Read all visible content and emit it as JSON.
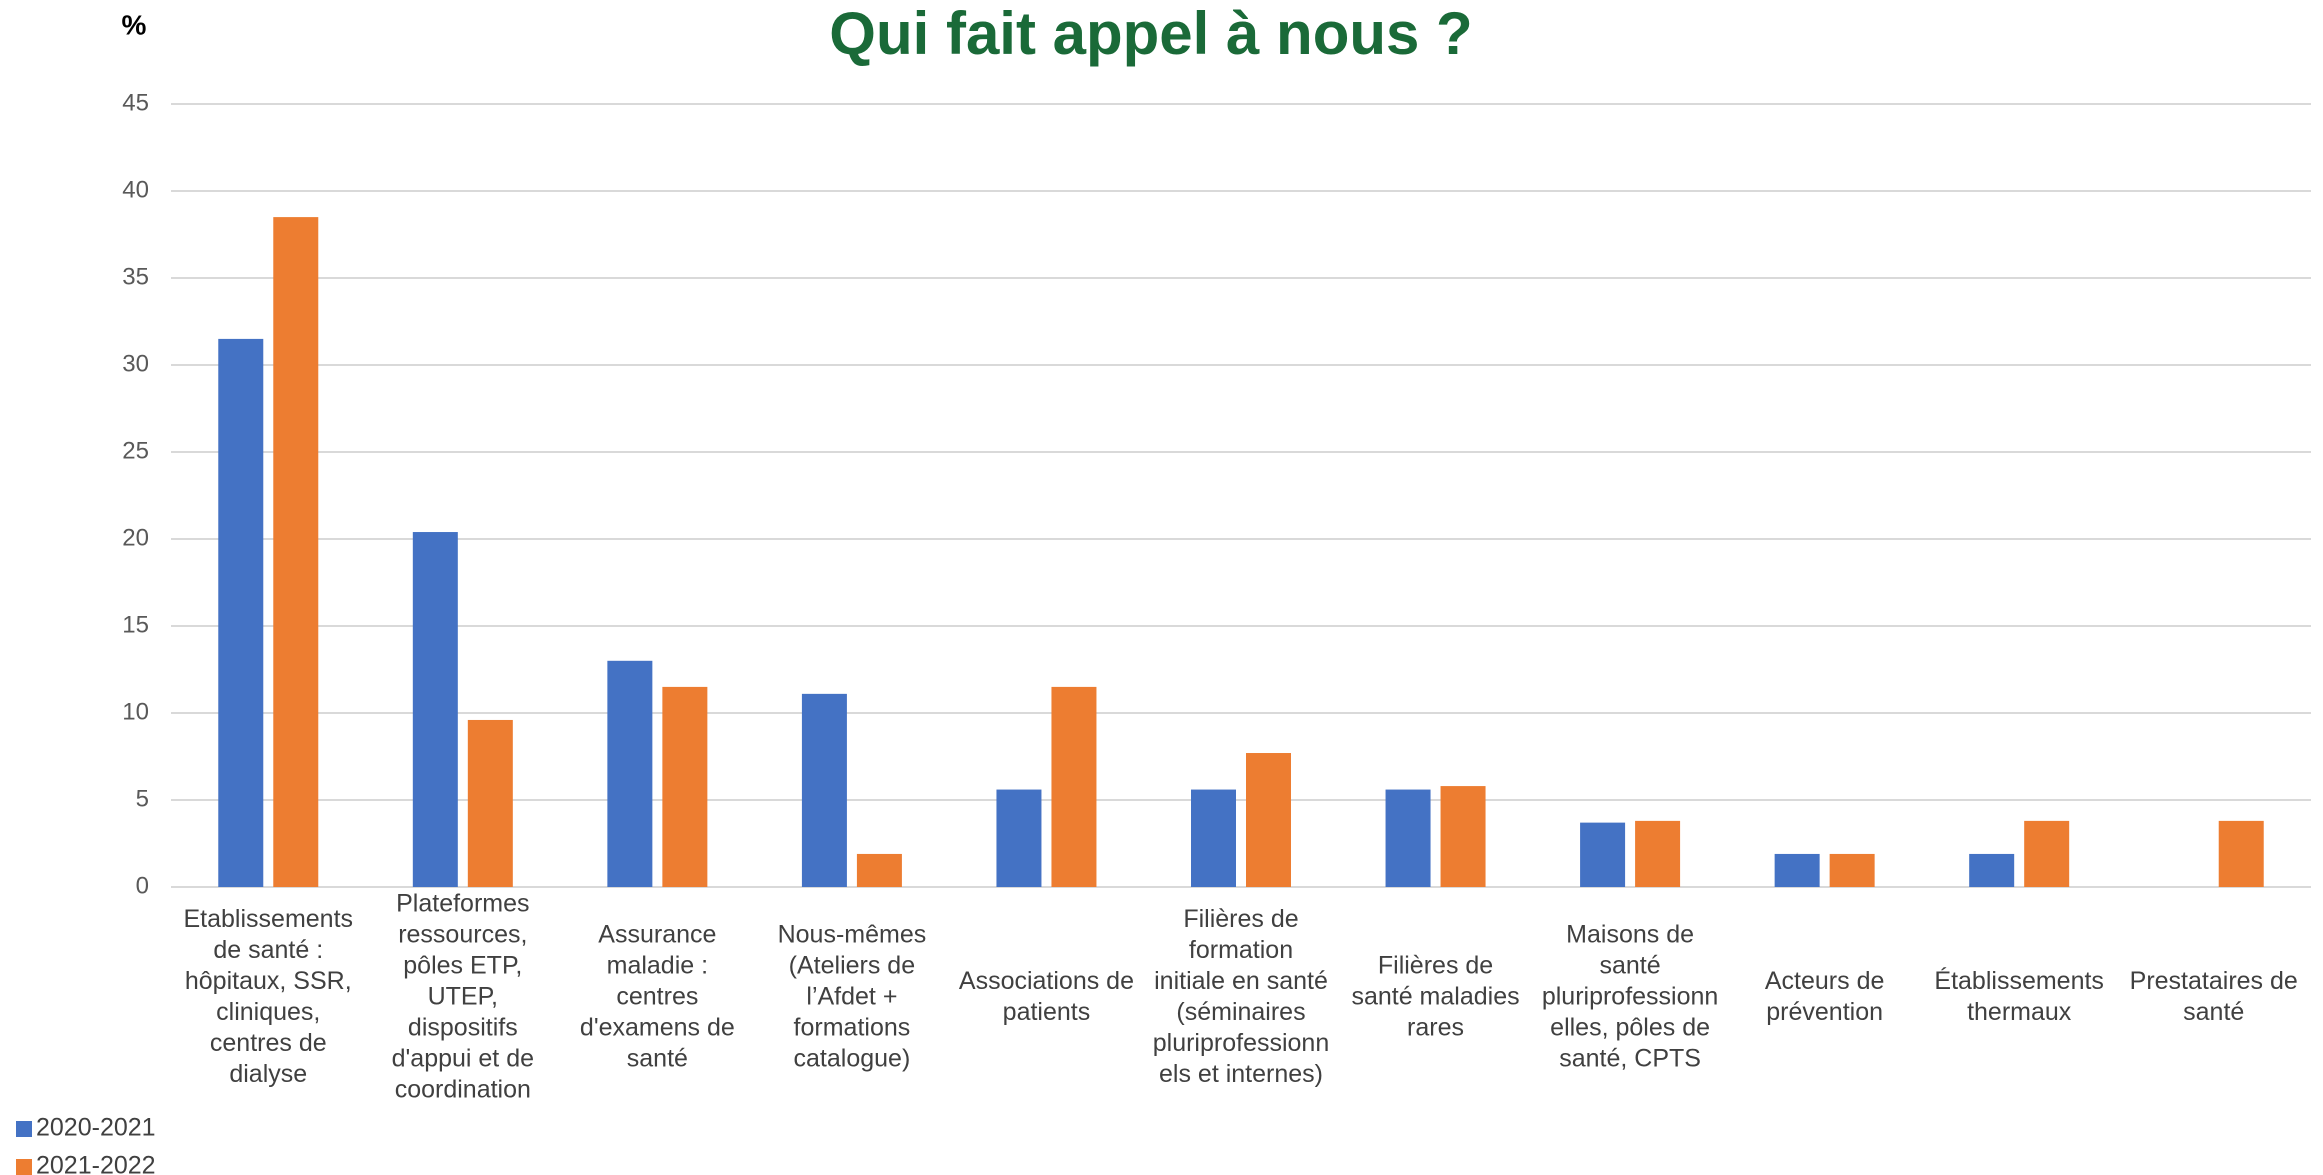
{
  "chart_data": {
    "type": "bar",
    "title": "Qui fait appel à nous ?",
    "y_label": "%",
    "categories": [
      [
        "Etablissements",
        "de santé :",
        "hôpitaux, SSR,",
        "cliniques,",
        "centres de",
        "dialyse"
      ],
      [
        "Plateformes",
        "ressources,",
        "pôles ETP,",
        "UTEP,",
        "dispositifs",
        "d'appui et de",
        "coordination"
      ],
      [
        "Assurance",
        "maladie :",
        "centres",
        "d'examens de",
        "santé"
      ],
      [
        "Nous-mêmes",
        "(Ateliers de",
        "l’Afdet +",
        "formations",
        "catalogue)"
      ],
      [
        "Associations de",
        "patients"
      ],
      [
        "Filières de",
        "formation",
        "initiale en santé",
        "(séminaires",
        "pluriprofessionn",
        "els et internes)"
      ],
      [
        "Filières de",
        "santé maladies",
        "rares"
      ],
      [
        "Maisons de",
        "santé",
        "pluriprofessionn",
        "elles, pôles de",
        "santé, CPTS"
      ],
      [
        "Acteurs de",
        "prévention"
      ],
      [
        "Établissements",
        "thermaux"
      ],
      [
        "Prestataires de",
        "santé"
      ]
    ],
    "series": [
      {
        "name": "2020-2021",
        "color": "#4472c4",
        "values": [
          31.5,
          20.4,
          13,
          11.1,
          5.6,
          5.6,
          5.6,
          3.7,
          1.9,
          1.9,
          null
        ]
      },
      {
        "name": "2021-2022",
        "color": "#ed7d31",
        "values": [
          38.5,
          9.6,
          11.5,
          1.9,
          11.5,
          7.7,
          5.8,
          3.8,
          1.9,
          3.8,
          3.8
        ]
      }
    ],
    "ylim": [
      0,
      45
    ],
    "yticks": [
      0,
      5,
      10,
      15,
      20,
      25,
      30,
      35,
      40,
      45
    ],
    "grid": true,
    "legend": "bottom-left"
  }
}
